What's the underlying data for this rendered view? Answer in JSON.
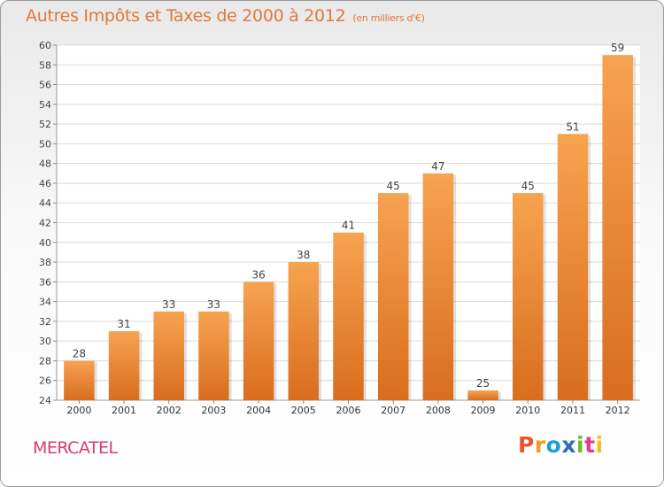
{
  "chart_data": {
    "type": "bar",
    "title": "Autres Impôts et Taxes de 2000 à 2012",
    "subtitle": "(en milliers d'€)",
    "xlabel": "",
    "ylabel": "",
    "categories": [
      "2000",
      "2001",
      "2002",
      "2003",
      "2004",
      "2005",
      "2006",
      "2007",
      "2008",
      "2009",
      "2010",
      "2011",
      "2012"
    ],
    "values": [
      28,
      31,
      33,
      33,
      36,
      38,
      41,
      45,
      47,
      25,
      45,
      51,
      59
    ],
    "ylim": [
      24,
      60
    ],
    "yticks": [
      24,
      26,
      28,
      30,
      32,
      34,
      36,
      38,
      40,
      42,
      44,
      46,
      48,
      50,
      52,
      54,
      56,
      58,
      60
    ],
    "grid": true,
    "bar_color": "#f0913a"
  },
  "footer": {
    "commune": "MERCATEL",
    "logo": "Proxiti"
  },
  "logo_colors": [
    "#e8572b",
    "#f39a1c",
    "#1aa0d8",
    "#2c6fba",
    "#6dbb2b",
    "#e83a8c",
    "#f2c21b"
  ]
}
